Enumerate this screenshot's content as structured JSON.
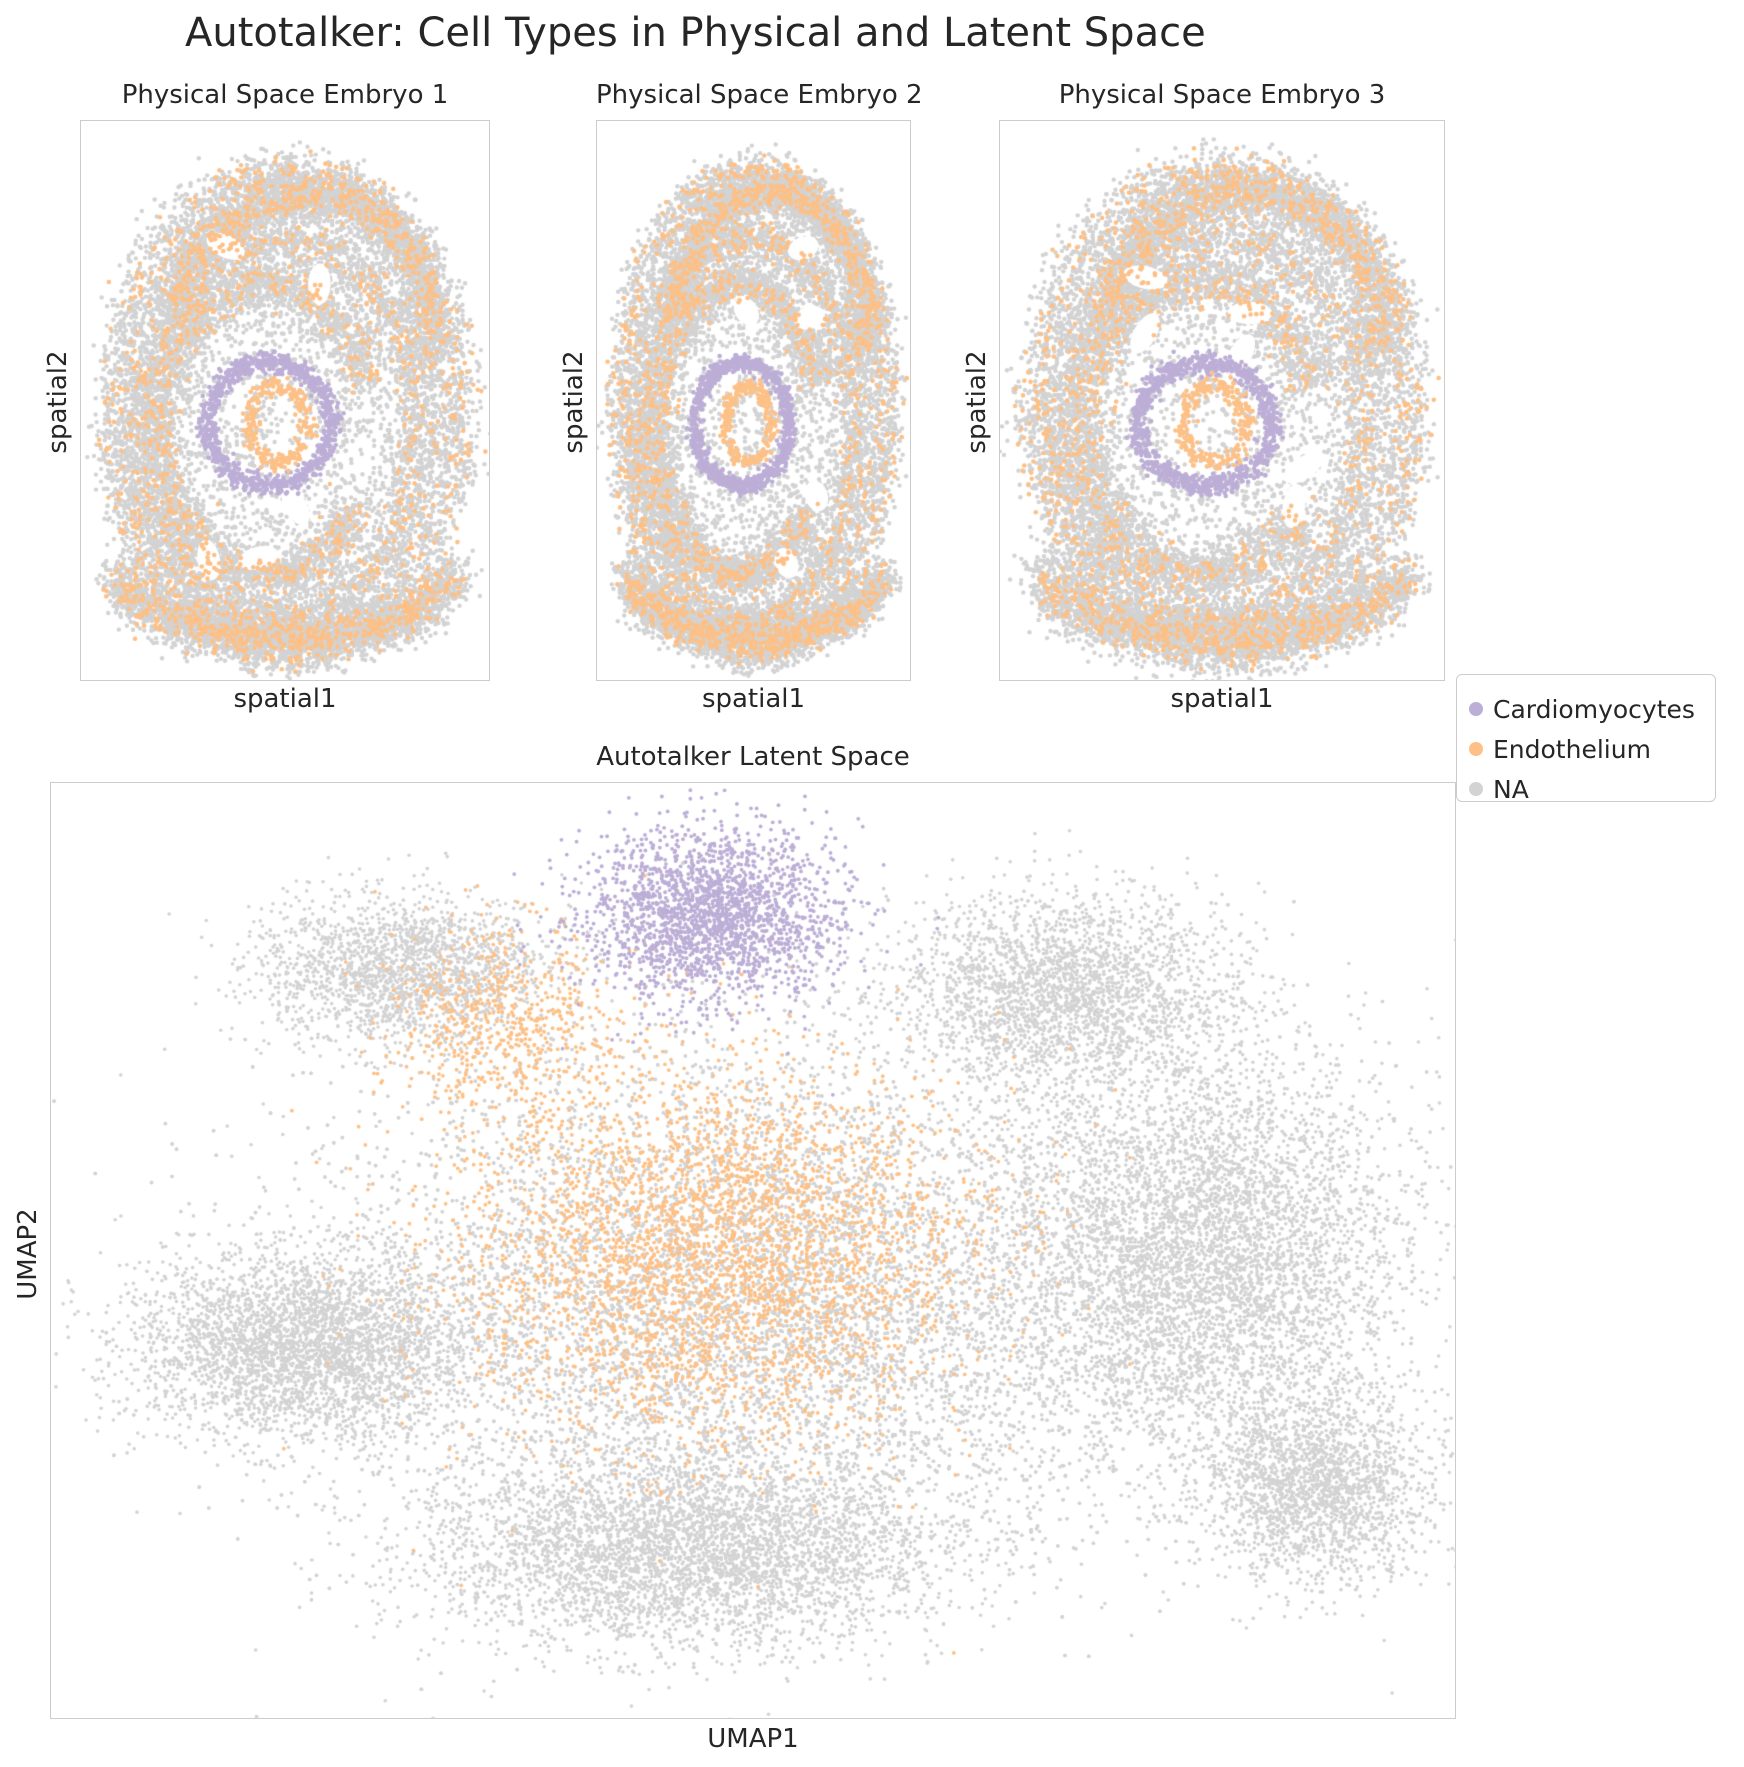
{
  "title": "Autotalker: Cell Types in Physical and Latent Space",
  "colors": {
    "Cardiomyocytes": "#bcaed6",
    "Endothelium": "#fdc086",
    "NA": "#d3d3d3",
    "frame": "#cccccc",
    "text": "#262626"
  },
  "legend": {
    "items": [
      {
        "label": "Cardiomyocytes",
        "color": "#bcaed6"
      },
      {
        "label": "Endothelium",
        "color": "#fdc086"
      },
      {
        "label": "NA",
        "color": "#d3d3d3"
      }
    ]
  },
  "chart_data": [
    {
      "type": "scatter",
      "title": "Physical Space Embryo 1",
      "xlabel": "spatial1",
      "ylabel": "spatial2",
      "grid": false,
      "series": [
        {
          "name": "Cardiomyocytes",
          "color": "#bcaed6"
        },
        {
          "name": "Endothelium",
          "color": "#fdc086"
        },
        {
          "name": "NA",
          "color": "#d3d3d3"
        }
      ]
    },
    {
      "type": "scatter",
      "title": "Physical Space Embryo 2",
      "xlabel": "spatial1",
      "ylabel": "spatial2",
      "grid": false,
      "series": [
        {
          "name": "Cardiomyocytes",
          "color": "#bcaed6"
        },
        {
          "name": "Endothelium",
          "color": "#fdc086"
        },
        {
          "name": "NA",
          "color": "#d3d3d3"
        }
      ]
    },
    {
      "type": "scatter",
      "title": "Physical Space Embryo 3",
      "xlabel": "spatial1",
      "ylabel": "spatial2",
      "grid": false,
      "series": [
        {
          "name": "Cardiomyocytes",
          "color": "#bcaed6"
        },
        {
          "name": "Endothelium",
          "color": "#fdc086"
        },
        {
          "name": "NA",
          "color": "#d3d3d3"
        }
      ]
    },
    {
      "type": "scatter",
      "title": "Autotalker Latent Space",
      "xlabel": "UMAP1",
      "ylabel": "UMAP2",
      "grid": false,
      "series": [
        {
          "name": "Cardiomyocytes",
          "color": "#bcaed6"
        },
        {
          "name": "Endothelium",
          "color": "#fdc086"
        },
        {
          "name": "NA",
          "color": "#d3d3d3"
        }
      ]
    }
  ]
}
